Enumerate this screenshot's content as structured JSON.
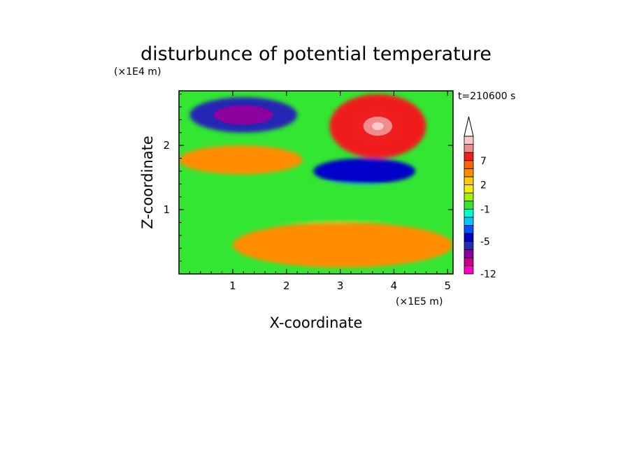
{
  "chart_data": {
    "type": "heatmap",
    "title": "disturbunce of potential temperature",
    "time_label": "t=210600 s",
    "xlabel": "X-coordinate",
    "ylabel": "Z-coordinate",
    "x_unit": "(×1E5 m)",
    "y_unit": "(×1E4 m)",
    "xlim": [
      0,
      5.1
    ],
    "ylim": [
      0,
      2.85
    ],
    "x_ticks": [
      1,
      2,
      3,
      4,
      5
    ],
    "y_ticks": [
      1,
      2
    ],
    "grid": false,
    "colorbar": {
      "levels": [
        -12,
        -10,
        -8,
        -6,
        -5,
        -4,
        -3,
        -2,
        -1,
        0,
        1,
        2,
        3,
        5,
        7,
        9,
        12
      ],
      "tick_labels": [
        "-12",
        "-5",
        "-1",
        "2",
        "7"
      ],
      "colors": [
        "#ff00c8",
        "#c8008c",
        "#8c00a0",
        "#2828b4",
        "#0000c8",
        "#0050ff",
        "#00c8ff",
        "#00ffd0",
        "#32e632",
        "#a0f000",
        "#f0f000",
        "#ffc800",
        "#ff8c00",
        "#ff6400",
        "#f01e1e",
        "#f08c8c",
        "#ffc8c8"
      ],
      "extend": "max"
    },
    "features": [
      {
        "region": "upper-left band",
        "x": [
          0.2,
          2.2
        ],
        "z": [
          2.2,
          2.75
        ],
        "value": -6
      },
      {
        "region": "left band",
        "x": [
          0.0,
          2.3
        ],
        "z": [
          1.55,
          2.0
        ],
        "value": 3
      },
      {
        "region": "upper-right warm core",
        "x": [
          2.8,
          4.6
        ],
        "z": [
          1.8,
          2.8
        ],
        "value": 8
      },
      {
        "region": "middle-right cold core",
        "x": [
          2.5,
          4.4
        ],
        "z": [
          1.4,
          1.8
        ],
        "value": -5
      },
      {
        "region": "middle layer",
        "x": [
          0.0,
          5.1
        ],
        "z": [
          0.8,
          1.4
        ],
        "value": -1
      },
      {
        "region": "lower warm layer",
        "x": [
          1.0,
          5.1
        ],
        "z": [
          0.1,
          0.8
        ],
        "value": 3
      }
    ]
  }
}
